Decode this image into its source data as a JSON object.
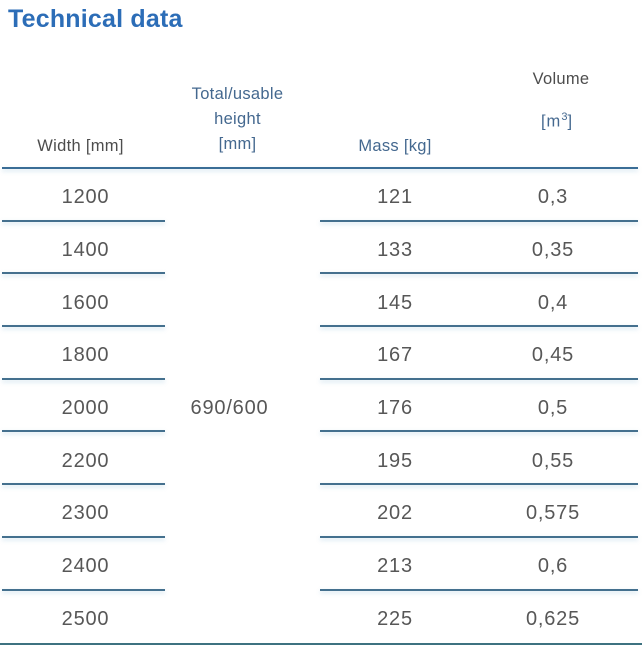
{
  "title": "Technical data",
  "colors": {
    "title_blue": "#2c6db7",
    "header_blue": "#44688f",
    "header_gray": "#4d4d4d",
    "value_gray": "#575757",
    "row_line": "#44708e",
    "header_line": "#3a6d96",
    "bottom_line": "#3d7280"
  },
  "table": {
    "header": {
      "width": "Width [mm]",
      "height": [
        "Total/usable",
        "height",
        "[mm]"
      ],
      "mass": "Mass [kg]",
      "volume": "Volume",
      "volume_unit": [
        "[m",
        "3",
        "]"
      ]
    },
    "merged_height_value": "690/600",
    "rows": [
      {
        "width": "1200",
        "mass": "121",
        "volume": "0,3"
      },
      {
        "width": "1400",
        "mass": "133",
        "volume": "0,35"
      },
      {
        "width": "1600",
        "mass": "145",
        "volume": "0,4"
      },
      {
        "width": "1800",
        "mass": "167",
        "volume": "0,45"
      },
      {
        "width": "2000",
        "mass": "176",
        "volume": "0,5"
      },
      {
        "width": "2200",
        "mass": "195",
        "volume": "0,55"
      },
      {
        "width": "2300",
        "mass": "202",
        "volume": "0,575"
      },
      {
        "width": "2400",
        "mass": "213",
        "volume": "0,6"
      },
      {
        "width": "2500",
        "mass": "225",
        "volume": "0,625"
      }
    ]
  }
}
